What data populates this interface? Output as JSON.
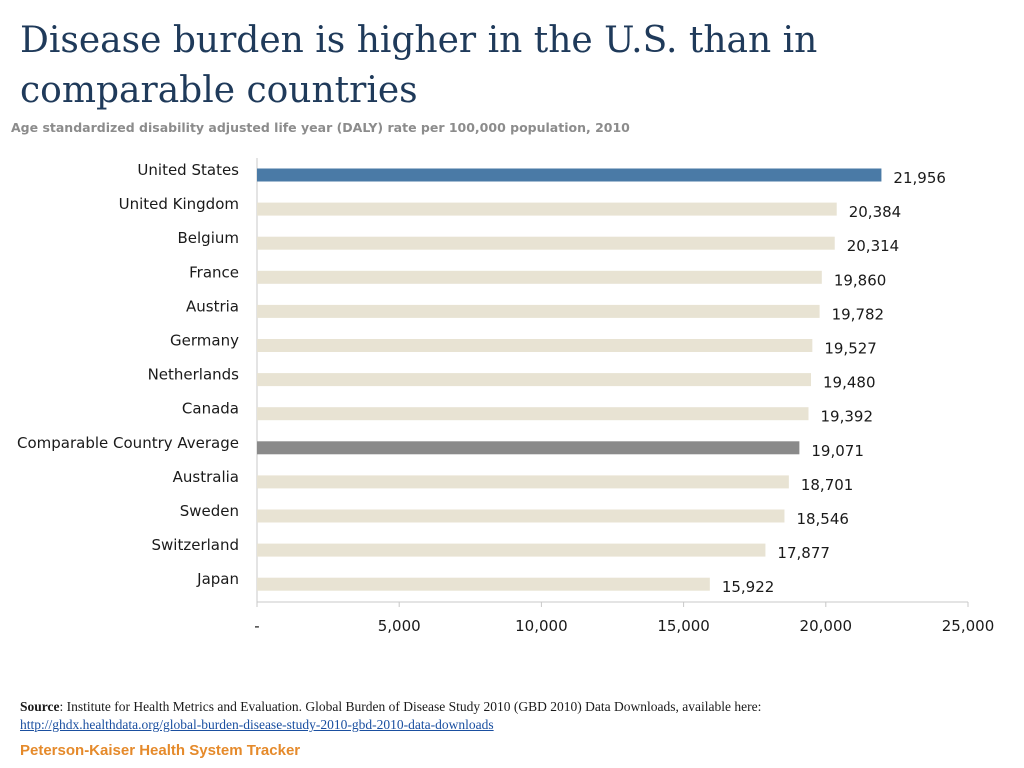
{
  "chart_data": {
    "type": "bar",
    "orientation": "horizontal",
    "title": "Disease burden is higher in the U.S. than in comparable countries",
    "subtitle": "Age standardized disability adjusted life year (DALY) rate per 100,000 population, 2010",
    "categories": [
      "United States",
      "United Kingdom",
      "Belgium",
      "France",
      "Austria",
      "Germany",
      "Netherlands",
      "Canada",
      "Comparable Country Average",
      "Australia",
      "Sweden",
      "Switzerland",
      "Japan"
    ],
    "values": [
      21956,
      20384,
      20314,
      19860,
      19782,
      19527,
      19480,
      19392,
      19071,
      18701,
      18546,
      17877,
      15922
    ],
    "value_labels": [
      "21,956",
      "20,384",
      "20,314",
      "19,860",
      "19,782",
      "19,527",
      "19,480",
      "19,392",
      "19,071",
      "18,701",
      "18,546",
      "17,877",
      "15,922"
    ],
    "bar_colors": [
      "#4a7aa6",
      "#e8e3d3",
      "#e8e3d3",
      "#e8e3d3",
      "#e8e3d3",
      "#e8e3d3",
      "#e8e3d3",
      "#e8e3d3",
      "#8a8a8a",
      "#e8e3d3",
      "#e8e3d3",
      "#e8e3d3",
      "#e8e3d3"
    ],
    "xlim": [
      0,
      25000
    ],
    "x_ticks": [
      0,
      5000,
      10000,
      15000,
      20000,
      25000
    ],
    "x_tick_labels": [
      "-",
      "5,000",
      "10,000",
      "15,000",
      "20,000",
      "25,000"
    ],
    "xlabel": "",
    "ylabel": "",
    "grid": false,
    "legend": "none"
  },
  "source": {
    "label": "Source",
    "text": ": Institute for Health Metrics and Evaluation. Global Burden of Disease Study 2010 (GBD 2010) Data Downloads, available here:",
    "link": "http://ghdx.healthdata.org/global-burden-disease-study-2010-gbd-2010-data-downloads"
  },
  "footer": {
    "brand": "Peterson-Kaiser Health System Tracker",
    "brand_color": "#e58a2b"
  }
}
